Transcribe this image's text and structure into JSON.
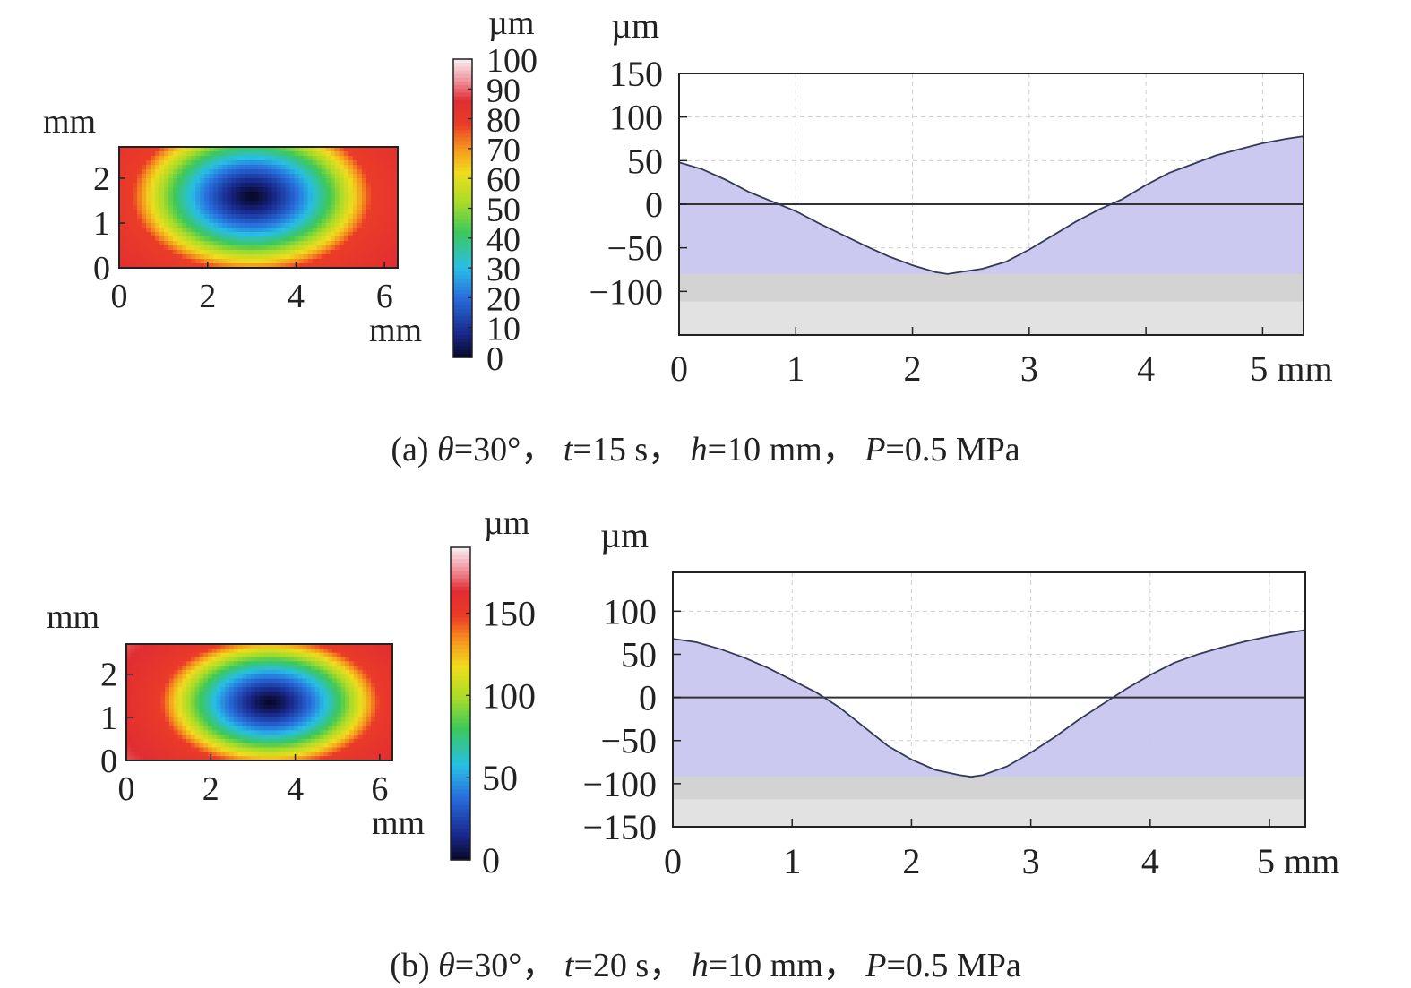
{
  "chart_data": [
    {
      "id": "a",
      "caption": {
        "label": "(a)",
        "theta_sym": "θ",
        "theta_val": "=30°，",
        "t_sym": "t",
        "t_val": "=15 s，",
        "h_sym": "h",
        "h_val": "=10 mm，",
        "p_sym": "P",
        "p_val": "=0.5 MPa"
      },
      "heatmap": {
        "type": "heatmap",
        "x_unit": "mm",
        "y_unit": "mm",
        "x_ticks": [
          "0",
          "2",
          "4",
          "6"
        ],
        "x_tick_values": [
          0,
          2,
          4,
          6
        ],
        "y_ticks": [
          "0",
          "1",
          "2"
        ],
        "y_tick_values": [
          0,
          1,
          2
        ],
        "xlim": [
          0,
          6.3
        ],
        "ylim": [
          0,
          2.7
        ],
        "center": [
          3.0,
          1.6
        ],
        "min_depth": 0,
        "rim_value": 78,
        "corner_value": 92,
        "radii": [
          2.7,
          1.7
        ]
      },
      "colorbar": {
        "unit": "µm",
        "ticks": [
          "0",
          "10",
          "20",
          "30",
          "40",
          "50",
          "60",
          "70",
          "80",
          "90",
          "100"
        ],
        "tick_values": [
          0,
          10,
          20,
          30,
          40,
          50,
          60,
          70,
          80,
          90,
          100
        ],
        "range": [
          0,
          100
        ]
      },
      "profile": {
        "type": "area",
        "y_unit": "µm",
        "x_unit": "mm",
        "x_ticks": [
          "0",
          "1",
          "2",
          "3",
          "4",
          "5 mm"
        ],
        "x_tick_values": [
          0,
          1,
          2,
          3,
          4,
          5
        ],
        "y_ticks": [
          "150",
          "100",
          "50",
          "0",
          "−50",
          "−100"
        ],
        "y_tick_values": [
          150,
          100,
          50,
          0,
          -50,
          -100
        ],
        "xlim": [
          0,
          5.35
        ],
        "ylim": [
          -150,
          150
        ],
        "grid": true,
        "x": [
          0,
          0.2,
          0.4,
          0.6,
          0.8,
          1.0,
          1.2,
          1.4,
          1.6,
          1.8,
          2.0,
          2.2,
          2.3,
          2.4,
          2.6,
          2.8,
          3.0,
          3.2,
          3.4,
          3.6,
          3.8,
          4.0,
          4.2,
          4.4,
          4.6,
          4.8,
          5.0,
          5.2,
          5.35
        ],
        "y": [
          48,
          40,
          28,
          14,
          3,
          -8,
          -22,
          -35,
          -48,
          -60,
          -70,
          -78,
          -80,
          -78,
          -74,
          -66,
          -52,
          -36,
          -20,
          -6,
          6,
          22,
          36,
          46,
          56,
          63,
          70,
          75,
          78
        ]
      }
    },
    {
      "id": "b",
      "caption": {
        "label": "(b)",
        "theta_sym": "θ",
        "theta_val": "=30°，",
        "t_sym": "t",
        "t_val": "=20 s，",
        "h_sym": "h",
        "h_val": "=10 mm，",
        "p_sym": "P",
        "p_val": "=0.5 MPa"
      },
      "heatmap": {
        "type": "heatmap",
        "x_unit": "mm",
        "y_unit": "mm",
        "x_ticks": [
          "0",
          "2",
          "4",
          "6"
        ],
        "x_tick_values": [
          0,
          2,
          4,
          6
        ],
        "y_ticks": [
          "0",
          "1",
          "2"
        ],
        "y_tick_values": [
          0,
          1,
          2
        ],
        "xlim": [
          0,
          6.3
        ],
        "ylim": [
          0,
          2.7
        ],
        "center": [
          3.4,
          1.35
        ],
        "min_depth": 0,
        "rim_value": 150,
        "corner_value": 178,
        "radii": [
          2.6,
          1.5
        ]
      },
      "colorbar": {
        "unit": "µm",
        "ticks": [
          "0",
          "50",
          "100",
          "150"
        ],
        "tick_values": [
          0,
          50,
          100,
          150
        ],
        "range": [
          0,
          190
        ]
      },
      "profile": {
        "type": "area",
        "y_unit": "µm",
        "x_unit": "mm",
        "x_ticks": [
          "0",
          "1",
          "2",
          "3",
          "4",
          "5 mm"
        ],
        "x_tick_values": [
          0,
          1,
          2,
          3,
          4,
          5
        ],
        "y_ticks": [
          "100",
          "50",
          "0",
          "−50",
          "−100",
          "−150"
        ],
        "y_tick_values": [
          100,
          50,
          0,
          -50,
          -100,
          -150
        ],
        "xlim": [
          0,
          5.3
        ],
        "ylim": [
          -150,
          145
        ],
        "grid": true,
        "x": [
          0,
          0.2,
          0.4,
          0.6,
          0.8,
          1.0,
          1.2,
          1.4,
          1.6,
          1.8,
          2.0,
          2.2,
          2.4,
          2.5,
          2.6,
          2.8,
          3.0,
          3.2,
          3.4,
          3.6,
          3.8,
          4.0,
          4.2,
          4.4,
          4.6,
          4.8,
          5.0,
          5.2,
          5.3
        ],
        "y": [
          68,
          64,
          56,
          46,
          34,
          20,
          6,
          -12,
          -34,
          -56,
          -72,
          -84,
          -90,
          -92,
          -90,
          -80,
          -64,
          -46,
          -26,
          -8,
          10,
          26,
          40,
          50,
          58,
          65,
          71,
          76,
          78
        ]
      }
    }
  ]
}
